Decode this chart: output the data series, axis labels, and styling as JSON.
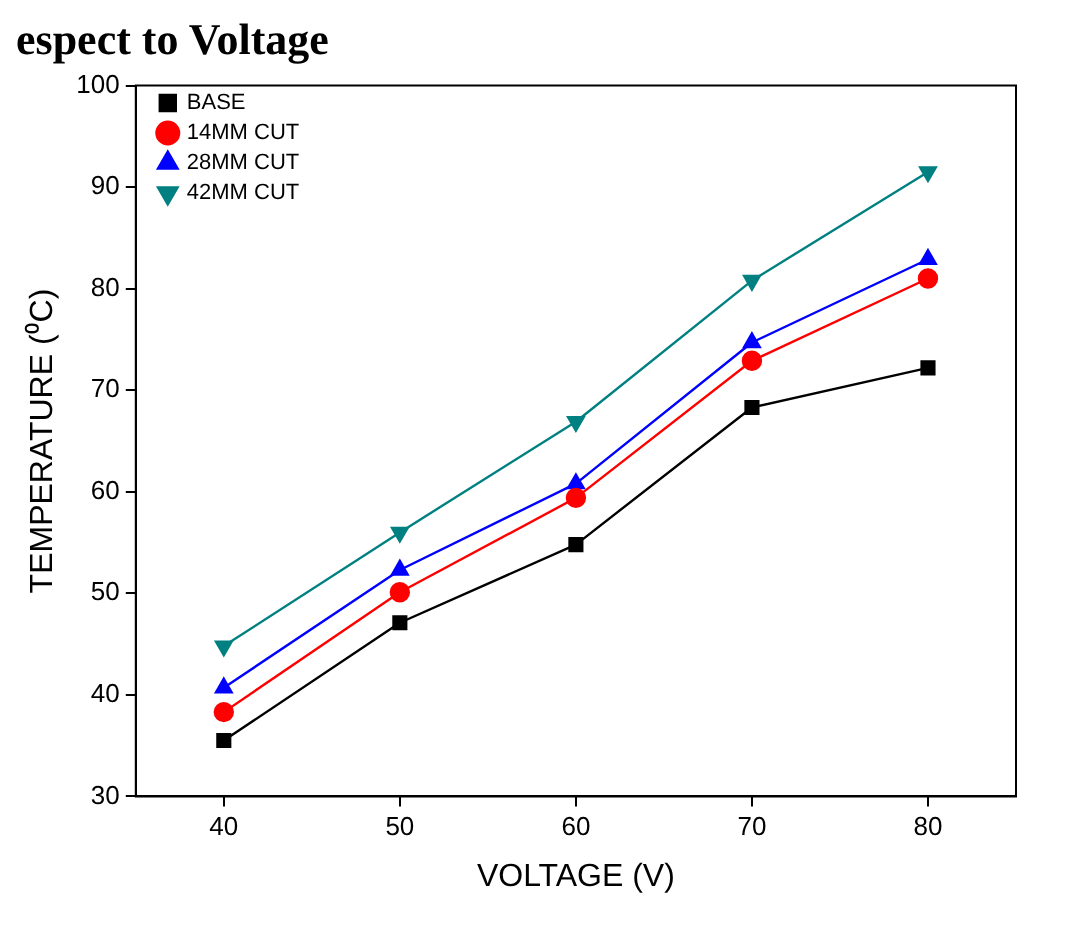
{
  "chart_data": {
    "type": "line",
    "title": "espect to Voltage",
    "xlabel": "VOLTAGE (V)",
    "ylabel": "TEMPERATURE (⁰C)",
    "x": [
      40,
      50,
      60,
      70,
      80
    ],
    "xlim": [
      35,
      85
    ],
    "xticks": [
      40,
      50,
      60,
      70,
      80
    ],
    "ylim": [
      30,
      100
    ],
    "yticks": [
      30,
      40,
      50,
      60,
      70,
      80,
      90,
      100
    ],
    "grid": false,
    "legend": "top left",
    "line_style": "solid",
    "series": [
      {
        "name": "BASE",
        "color": "#000000",
        "marker": "square",
        "values": [
          35.5,
          47.1,
          54.8,
          68.3,
          72.2
        ]
      },
      {
        "name": "14MM CUT",
        "color": "#ff0000",
        "marker": "circle",
        "values": [
          38.3,
          50.1,
          59.4,
          72.9,
          81.0
        ]
      },
      {
        "name": "28MM CUT",
        "color": "#0000ff",
        "marker": "triangle",
        "values": [
          40.7,
          52.3,
          60.8,
          74.7,
          82.9
        ]
      },
      {
        "name": "42MM CUT",
        "color": "#008080",
        "marker": "triangle-down",
        "values": [
          44.8,
          56.0,
          66.9,
          80.8,
          91.5
        ]
      }
    ]
  }
}
